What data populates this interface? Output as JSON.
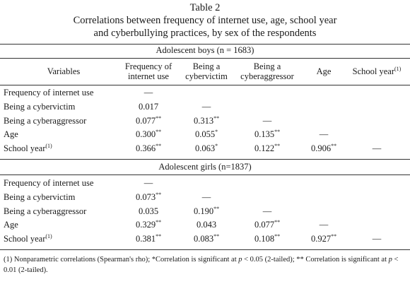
{
  "title": "Table 2",
  "caption": [
    "Correlations between frequency of internet use, age, school year",
    "and cyberbullying practices, by sex of the respondents"
  ],
  "columns": [
    {
      "text": "Variables"
    },
    {
      "text": "Frequency of internet use"
    },
    {
      "text": "Being a cybervictim"
    },
    {
      "text": "Being a cyberaggressor"
    },
    {
      "text": "Age"
    },
    {
      "text": "School year",
      "sup": "(1)"
    }
  ],
  "sections": [
    {
      "heading": "Adolescent boys (n = 1683)",
      "rows": [
        {
          "label": {
            "text": "Frequency of internet use"
          },
          "cells": [
            {
              "text": "—"
            }
          ]
        },
        {
          "label": {
            "text": "Being a cybervictim"
          },
          "cells": [
            {
              "text": "0.017"
            },
            {
              "text": "—"
            }
          ]
        },
        {
          "label": {
            "text": "Being a cyberaggressor"
          },
          "cells": [
            {
              "text": "0.077",
              "sup": "**"
            },
            {
              "text": "0.313",
              "sup": "**"
            },
            {
              "text": "—"
            }
          ]
        },
        {
          "label": {
            "text": "Age"
          },
          "cells": [
            {
              "text": "0.300",
              "sup": "**"
            },
            {
              "text": "0.055",
              "sup": "*"
            },
            {
              "text": "0.135",
              "sup": "**"
            },
            {
              "text": "—"
            }
          ]
        },
        {
          "label": {
            "text": "School year",
            "sup": "(1)"
          },
          "cells": [
            {
              "text": "0.366",
              "sup": "**"
            },
            {
              "text": "0.063",
              "sup": "*"
            },
            {
              "text": "0.122",
              "sup": "**"
            },
            {
              "text": "0.906",
              "sup": "**"
            },
            {
              "text": "—"
            }
          ]
        }
      ]
    },
    {
      "heading": "Adolescent girls (n=1837)",
      "rows": [
        {
          "label": {
            "text": "Frequency of internet use"
          },
          "cells": [
            {
              "text": "—"
            }
          ]
        },
        {
          "label": {
            "text": "Being a cybervictim"
          },
          "cells": [
            {
              "text": "0.073",
              "sup": "**"
            },
            {
              "text": "—"
            }
          ]
        },
        {
          "label": {
            "text": "Being a cyberaggressor"
          },
          "cells": [
            {
              "text": "0.035"
            },
            {
              "text": "0.190",
              "sup": "**"
            },
            {
              "text": "—"
            }
          ]
        },
        {
          "label": {
            "text": "Age"
          },
          "cells": [
            {
              "text": "0.329",
              "sup": "**"
            },
            {
              "text": "0.043"
            },
            {
              "text": "0.077",
              "sup": "**"
            },
            {
              "text": "—"
            }
          ]
        },
        {
          "label": {
            "text": "School year",
            "sup": "(1)"
          },
          "cells": [
            {
              "text": "0.381",
              "sup": "**"
            },
            {
              "text": "0.083",
              "sup": "**"
            },
            {
              "text": "0.108",
              "sup": "**"
            },
            {
              "text": "0.927",
              "sup": "**"
            },
            {
              "text": "—"
            }
          ]
        }
      ]
    }
  ],
  "footnote": [
    "(1) Nonparametric correlations (Spearman's rho); *Correlation is significant at ",
    "p",
    " < 0.05 (2-tailed); ** Correlation is significant at ",
    "p",
    " < 0.01 (2-tailed)."
  ]
}
